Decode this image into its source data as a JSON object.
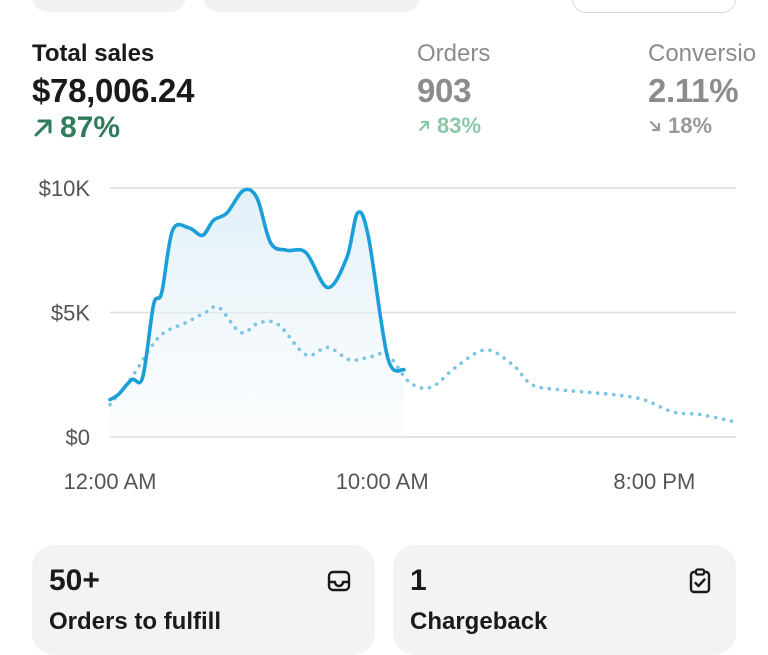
{
  "metrics": [
    {
      "label": "Total sales",
      "value": "$78,006.24",
      "delta": "87%",
      "direction": "up",
      "color": "#2f7d5a"
    },
    {
      "label": "Orders",
      "value": "903",
      "delta": "83%",
      "direction": "up",
      "color": "#8cc7a9"
    },
    {
      "label": "Conversio",
      "value": "2.11%",
      "delta": "18%",
      "direction": "down",
      "color": "#9a9a9a"
    }
  ],
  "chart_data": {
    "type": "line",
    "ylim": [
      0,
      10000
    ],
    "y_ticks": [
      {
        "value": 10000,
        "label": "$10K"
      },
      {
        "value": 5000,
        "label": "$5K"
      },
      {
        "value": 0,
        "label": "$0"
      }
    ],
    "x_domain": [
      0,
      23
    ],
    "x_ticks": [
      {
        "value": 0,
        "label": "12:00 AM"
      },
      {
        "value": 10,
        "label": "10:00 AM"
      },
      {
        "value": 20,
        "label": "8:00 PM"
      }
    ],
    "grid": true,
    "series": [
      {
        "style": "solid",
        "color": "#1a9fd9",
        "x": [
          0,
          0.3,
          0.8,
          1.2,
          1.6,
          1.9,
          2.3,
          2.9,
          3.4,
          3.8,
          4.3,
          4.9,
          5.4,
          5.9,
          6.5,
          7.2,
          8.0,
          8.7,
          9.1,
          9.5,
          10.2,
          10.8
        ],
        "values": [
          1500,
          1700,
          2300,
          2400,
          5300,
          5800,
          8300,
          8400,
          8100,
          8700,
          9000,
          9900,
          9600,
          7800,
          7500,
          7400,
          6000,
          7200,
          9000,
          8000,
          3200,
          2700
        ]
      },
      {
        "style": "dotted",
        "color": "#7cc5e2",
        "x": [
          0,
          0.8,
          1.5,
          2.0,
          2.8,
          3.5,
          4.0,
          4.8,
          5.5,
          6.2,
          7.2,
          8.0,
          8.8,
          9.5,
          10.2,
          11.0,
          11.8,
          12.7,
          13.8,
          14.8,
          15.5,
          16.5,
          17.5,
          18.5,
          19.6,
          20.7,
          21.7,
          23.0
        ],
        "values": [
          1300,
          2400,
          3600,
          4200,
          4600,
          5000,
          5200,
          4200,
          4600,
          4500,
          3300,
          3600,
          3100,
          3200,
          3300,
          2200,
          2000,
          2800,
          3500,
          2900,
          2100,
          1900,
          1800,
          1700,
          1500,
          1000,
          900,
          600
        ]
      }
    ]
  },
  "cards": [
    {
      "value": "50+",
      "label": "Orders to fulfill",
      "icon": "inbox-icon"
    },
    {
      "value": "1",
      "label": "Chargeback",
      "icon": "clipboard-check-icon"
    }
  ]
}
